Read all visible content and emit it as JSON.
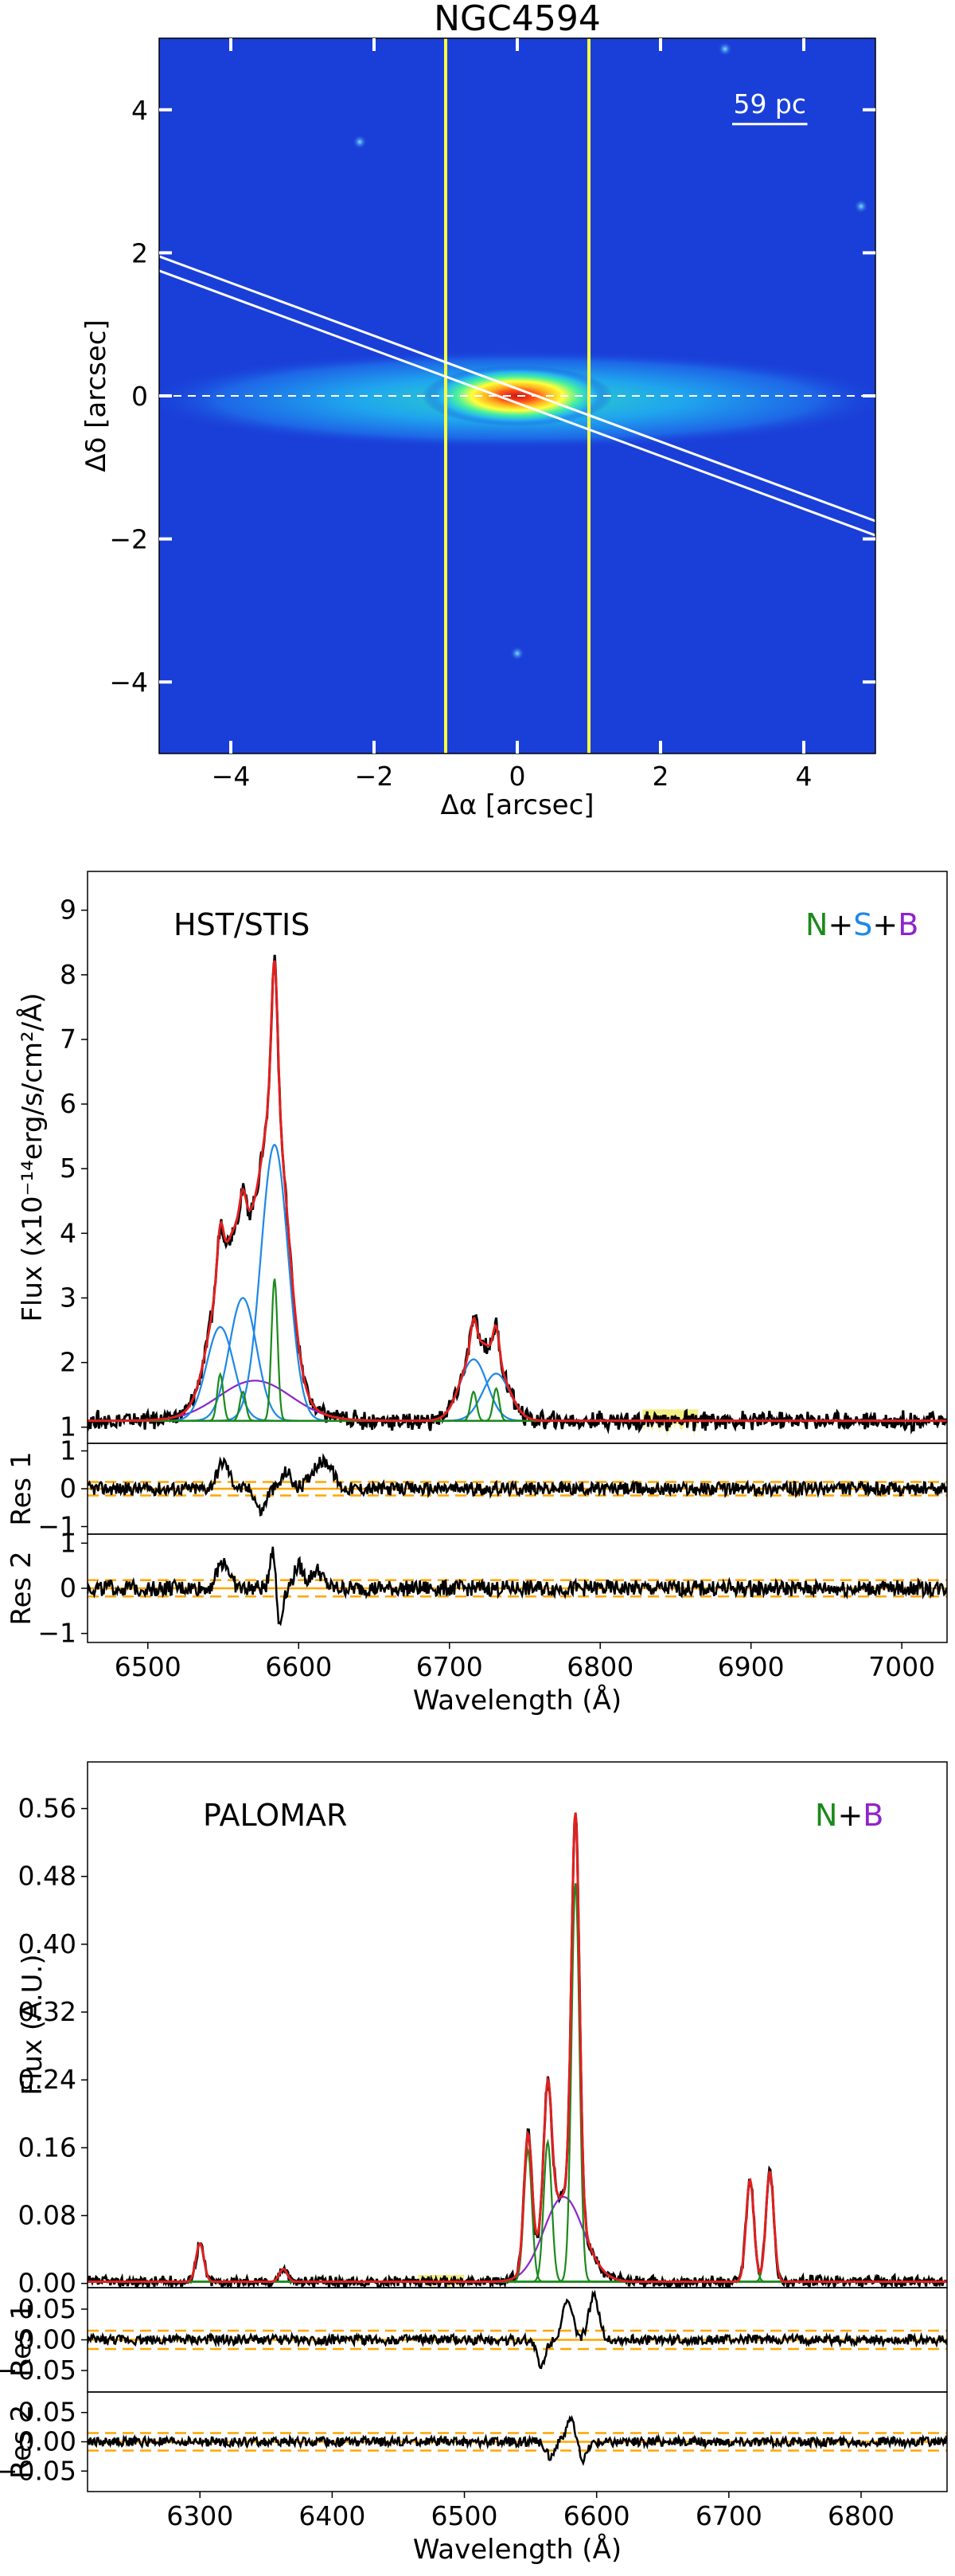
{
  "figure": {
    "colors": {
      "narrow": "#1a8a1a",
      "second": "#1e88e5",
      "broad": "#8e24cc",
      "model": "#e02020",
      "data": "#000000",
      "residual_ref": "#ffa500",
      "masked": "#e8e020",
      "slit": "#ffff40",
      "image_bg": "#1a3fd8"
    }
  },
  "chart_data": [
    {
      "type": "heatmap",
      "title": "NGC4594",
      "xlabel": "Δα [arcsec]",
      "ylabel": "Δδ [arcsec]",
      "xlim": [
        -5,
        5
      ],
      "ylim": [
        -5,
        5
      ],
      "xticks": [
        "−4",
        "−2",
        "0",
        "2",
        "4"
      ],
      "xtick_values": [
        -4,
        -2,
        0,
        2,
        4
      ],
      "yticks": [
        "4",
        "2",
        "0",
        "−2",
        "−4"
      ],
      "ytick_values": [
        4,
        2,
        0,
        -2,
        -4
      ],
      "scalebar": "59 pc",
      "scalebar_arcsec": 1.05,
      "vertical_lines_x": [
        -1,
        1
      ],
      "slit_edges": [
        {
          "x1": -5,
          "y1": 1.95,
          "x2": 5,
          "y2": -1.75
        },
        {
          "x1": -5,
          "y1": 1.75,
          "x2": 5,
          "y2": -1.95
        }
      ],
      "major_axis_y": 0,
      "point_sources": [
        {
          "x": -2.2,
          "y": 3.55
        },
        {
          "x": 2.9,
          "y": 4.85
        },
        {
          "x": 4.8,
          "y": 2.65
        },
        {
          "x": 0.0,
          "y": -3.6
        }
      ]
    },
    {
      "type": "line",
      "label": "HST/STIS",
      "legend": [
        {
          "text": "N",
          "color": "narrow"
        },
        {
          "text": "+",
          "color": "black"
        },
        {
          "text": "S",
          "color": "second"
        },
        {
          "text": "+",
          "color": "black"
        },
        {
          "text": "B",
          "color": "broad"
        }
      ],
      "xlabel": "Wavelength (Å)",
      "ylabel": "Flux (x10⁻¹⁴erg/s/cm²/Å)",
      "xlim": [
        6460,
        7030
      ],
      "ylim": [
        0.75,
        9.6
      ],
      "xticks": [
        "6500",
        "6600",
        "6700",
        "6800",
        "6900",
        "7000"
      ],
      "xtick_values": [
        6500,
        6600,
        6700,
        6800,
        6900,
        7000
      ],
      "yticks": [
        "1",
        "2",
        "3",
        "4",
        "5",
        "6",
        "7",
        "8",
        "9"
      ],
      "ytick_values": [
        1,
        2,
        3,
        4,
        5,
        6,
        7,
        8,
        9
      ],
      "continuum": 1.1,
      "noise": 0.11,
      "masked_range": [
        6828,
        6865
      ],
      "components": [
        {
          "name": "broad",
          "color": "broad",
          "lines": [
            [
              6571,
              0.62,
              24
            ]
          ]
        },
        {
          "name": "second",
          "color": "second",
          "lines": [
            [
              6548,
              1.45,
              9
            ],
            [
              6563,
              1.9,
              9
            ],
            [
              6584,
              4.27,
              9
            ],
            [
              6716,
              0.95,
              9
            ],
            [
              6731,
              0.73,
              9
            ]
          ]
        },
        {
          "name": "narrow",
          "color": "narrow",
          "lines": [
            [
              6548,
              0.72,
              2
            ],
            [
              6563,
              0.45,
              2
            ],
            [
              6584,
              2.2,
              2
            ],
            [
              6716,
              0.45,
              2
            ],
            [
              6731,
              0.5,
              2
            ]
          ]
        }
      ],
      "residual_panels": [
        {
          "label": "Res 1",
          "ylim": [
            -1.2,
            1.2
          ],
          "yticks": [
            "1",
            "0",
            "−1"
          ],
          "ytick_values": [
            1,
            0,
            -1
          ],
          "ref_solid": 0,
          "ref_dashed": [
            0.18,
            -0.18
          ],
          "amplitude": 0.22,
          "features": [
            [
              6550,
              0.7,
              4
            ],
            [
              6575,
              -0.6,
              3
            ],
            [
              6592,
              0.45,
              3
            ],
            [
              6612,
              0.55,
              5
            ],
            [
              6620,
              0.5,
              4
            ]
          ]
        },
        {
          "label": "Res 2",
          "ylim": [
            -1.2,
            1.2
          ],
          "yticks": [
            "1",
            "0",
            "−1"
          ],
          "ytick_values": [
            1,
            0,
            -1
          ],
          "ref_solid": 0,
          "ref_dashed": [
            0.18,
            -0.18
          ],
          "amplitude": 0.22,
          "features": [
            [
              6550,
              0.6,
              4
            ],
            [
              6583,
              1.0,
              2
            ],
            [
              6587,
              -0.9,
              2
            ],
            [
              6600,
              0.5,
              3
            ],
            [
              6612,
              0.4,
              4
            ]
          ]
        }
      ]
    },
    {
      "type": "line",
      "label": "PALOMAR",
      "legend": [
        {
          "text": "N",
          "color": "narrow"
        },
        {
          "text": "+",
          "color": "black"
        },
        {
          "text": "B",
          "color": "broad"
        }
      ],
      "xlabel": "Wavelength (Å)",
      "ylabel": "Flux (A.U.)",
      "xlim": [
        6215,
        6865
      ],
      "ylim": [
        -0.005,
        0.615
      ],
      "xticks": [
        "6300",
        "6400",
        "6500",
        "6600",
        "6700",
        "6800"
      ],
      "xtick_values": [
        6300,
        6400,
        6500,
        6600,
        6700,
        6800
      ],
      "yticks": [
        "0.00",
        "0.08",
        "0.16",
        "0.24",
        "0.32",
        "0.40",
        "0.48",
        "0.56"
      ],
      "ytick_values": [
        0.0,
        0.08,
        0.16,
        0.24,
        0.32,
        0.4,
        0.48,
        0.56
      ],
      "continuum": 0.002,
      "noise": 0.005,
      "masked_range": [
        6465,
        6500
      ],
      "components": [
        {
          "name": "broad",
          "color": "broad",
          "lines": [
            [
              6575,
              0.1,
              15
            ]
          ]
        },
        {
          "name": "narrow",
          "color": "narrow",
          "lines": [
            [
              6300,
              0.045,
              3
            ],
            [
              6363,
              0.015,
              3
            ],
            [
              6548,
              0.155,
              3
            ],
            [
              6563,
              0.165,
              3
            ],
            [
              6584,
              0.47,
              3
            ],
            [
              6716,
              0.12,
              3
            ],
            [
              6731,
              0.13,
              3
            ]
          ]
        }
      ],
      "residual_panels": [
        {
          "label": "Res 1",
          "ylim": [
            -0.085,
            0.085
          ],
          "yticks": [
            "0.05",
            "0.00",
            "−0.05"
          ],
          "ytick_values": [
            0.05,
            0.0,
            -0.05
          ],
          "ref_solid": 0.0,
          "ref_dashed": [
            0.015,
            -0.015
          ],
          "amplitude": 0.01,
          "features": [
            [
              6558,
              -0.045,
              3
            ],
            [
              6578,
              0.06,
              4
            ],
            [
              6598,
              0.07,
              4
            ]
          ]
        },
        {
          "label": "Res 2",
          "ylim": [
            -0.085,
            0.085
          ],
          "yticks": [
            "0.05",
            "0.00",
            "−0.05"
          ],
          "ytick_values": [
            0.05,
            0.0,
            -0.05
          ],
          "ref_solid": 0.0,
          "ref_dashed": [
            0.015,
            -0.015
          ],
          "amplitude": 0.01,
          "features": [
            [
              6565,
              -0.025,
              3
            ],
            [
              6580,
              0.04,
              3
            ],
            [
              6590,
              -0.03,
              3
            ]
          ]
        }
      ]
    }
  ]
}
